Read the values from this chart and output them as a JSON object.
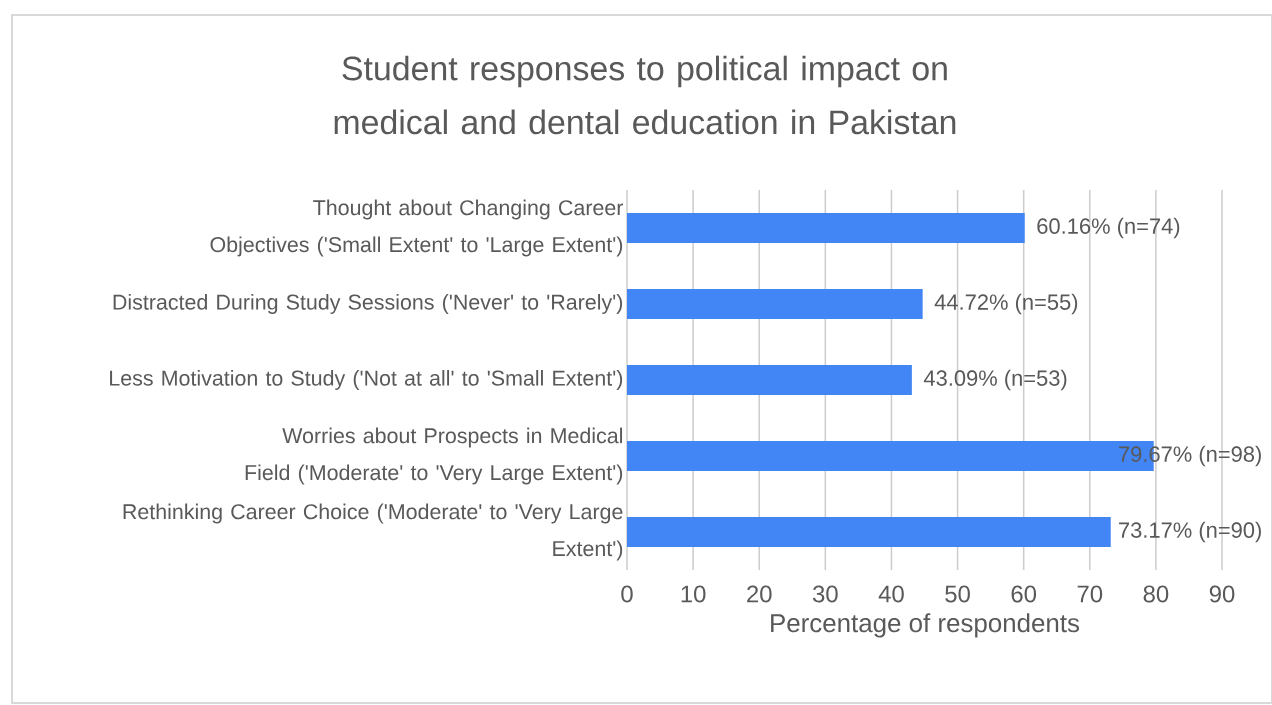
{
  "chart_data": {
    "type": "bar",
    "orientation": "horizontal",
    "title": "Student responses to political impact on medical and dental education in Pakistan",
    "xlabel": "Percentage of respondents",
    "categories": [
      "Thought about Changing Career Objectives ('Small Extent' to 'Large Extent')",
      "Distracted During Study Sessions ('Never' to 'Rarely')",
      "Less Motivation to Study ('Not at all' to 'Small Extent')",
      "Worries about Prospects in Medical Field ('Moderate' to 'Very Large Extent')",
      "Rethinking Career Choice ('Moderate' to 'Very Large Extent')"
    ],
    "values": [
      60.16,
      44.72,
      43.09,
      79.67,
      73.17
    ],
    "value_labels": [
      "60.16% (n=74)",
      "44.72% (n=55)",
      "43.09% (n=53)",
      "79.67% (n=98)",
      "73.17% (n=90)"
    ],
    "color": "#4285f4",
    "xlim": [
      0,
      90
    ],
    "xticks": [
      0,
      10,
      20,
      30,
      40,
      50,
      60,
      70,
      80,
      90
    ],
    "grid": "x"
  }
}
